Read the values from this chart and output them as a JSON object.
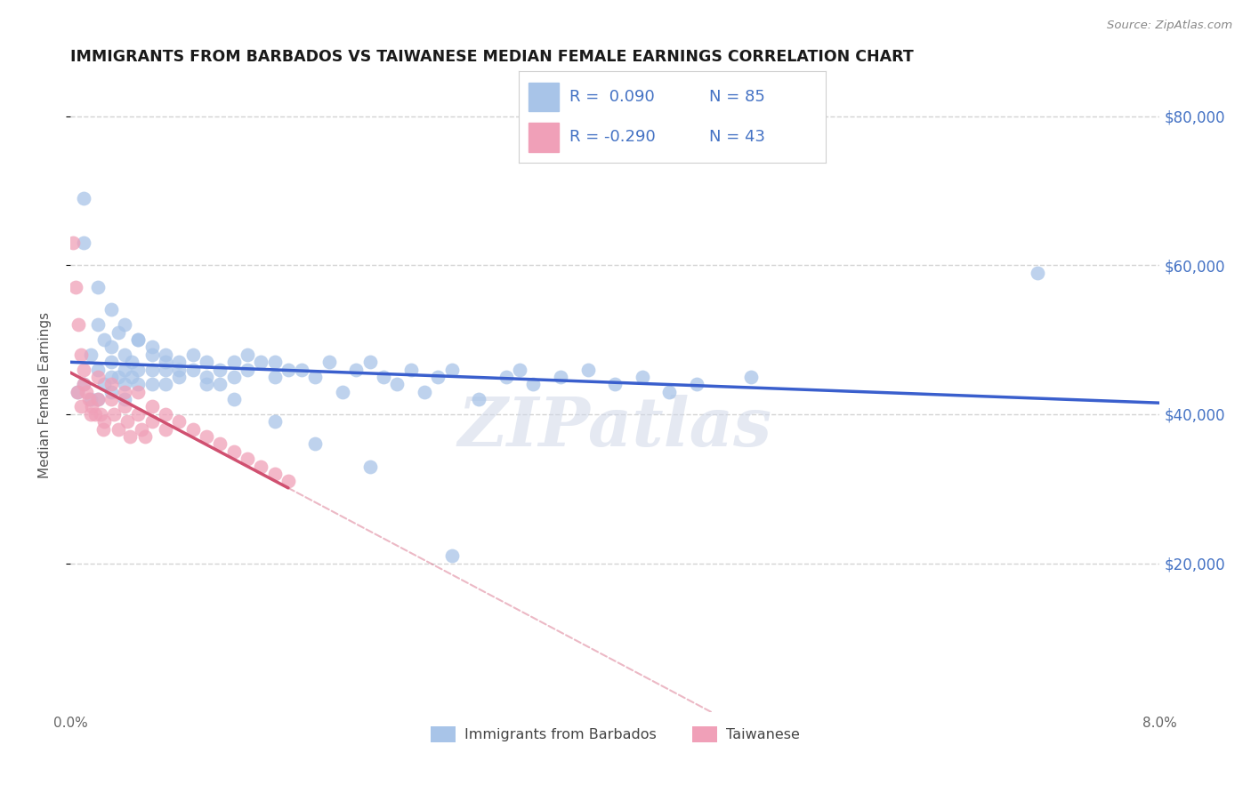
{
  "title": "IMMIGRANTS FROM BARBADOS VS TAIWANESE MEDIAN FEMALE EARNINGS CORRELATION CHART",
  "source": "Source: ZipAtlas.com",
  "ylabel": "Median Female Earnings",
  "xmin": 0.0,
  "xmax": 0.08,
  "ymin": 0,
  "ymax": 85000,
  "yticks": [
    20000,
    40000,
    60000,
    80000
  ],
  "ytick_labels": [
    "$20,000",
    "$40,000",
    "$60,000",
    "$80,000"
  ],
  "series1": {
    "label": "Immigrants from Barbados",
    "color_scatter": "#a8c4e8",
    "color_line": "#3a5fcd",
    "R": 0.09,
    "N": 85,
    "x": [
      0.0005,
      0.001,
      0.001,
      0.0015,
      0.0015,
      0.002,
      0.002,
      0.002,
      0.0025,
      0.0025,
      0.003,
      0.003,
      0.003,
      0.003,
      0.0035,
      0.0035,
      0.004,
      0.004,
      0.004,
      0.004,
      0.0045,
      0.0045,
      0.005,
      0.005,
      0.005,
      0.006,
      0.006,
      0.006,
      0.007,
      0.007,
      0.007,
      0.008,
      0.008,
      0.009,
      0.009,
      0.01,
      0.01,
      0.011,
      0.011,
      0.012,
      0.012,
      0.013,
      0.013,
      0.014,
      0.015,
      0.015,
      0.016,
      0.017,
      0.018,
      0.019,
      0.02,
      0.021,
      0.022,
      0.023,
      0.024,
      0.025,
      0.026,
      0.027,
      0.028,
      0.03,
      0.032,
      0.033,
      0.034,
      0.036,
      0.038,
      0.04,
      0.042,
      0.044,
      0.046,
      0.05,
      0.001,
      0.002,
      0.003,
      0.004,
      0.005,
      0.006,
      0.007,
      0.008,
      0.01,
      0.012,
      0.015,
      0.018,
      0.022,
      0.028,
      0.071
    ],
    "y": [
      43000,
      69000,
      44000,
      48000,
      42000,
      52000,
      46000,
      42000,
      50000,
      44000,
      49000,
      47000,
      45000,
      43000,
      51000,
      45000,
      48000,
      46000,
      44000,
      42000,
      47000,
      45000,
      50000,
      46000,
      44000,
      49000,
      46000,
      44000,
      48000,
      46000,
      44000,
      47000,
      45000,
      48000,
      46000,
      47000,
      45000,
      46000,
      44000,
      47000,
      45000,
      48000,
      46000,
      47000,
      47000,
      45000,
      46000,
      46000,
      45000,
      47000,
      43000,
      46000,
      47000,
      45000,
      44000,
      46000,
      43000,
      45000,
      46000,
      42000,
      45000,
      46000,
      44000,
      45000,
      46000,
      44000,
      45000,
      43000,
      44000,
      45000,
      63000,
      57000,
      54000,
      52000,
      50000,
      48000,
      47000,
      46000,
      44000,
      42000,
      39000,
      36000,
      33000,
      21000,
      59000
    ]
  },
  "series2": {
    "label": "Taiwanese",
    "color_scatter": "#f0a0b8",
    "color_line": "#d05070",
    "R": -0.29,
    "N": 43,
    "x": [
      0.0002,
      0.0004,
      0.0006,
      0.0008,
      0.001,
      0.001,
      0.0012,
      0.0014,
      0.0016,
      0.0018,
      0.002,
      0.002,
      0.0022,
      0.0024,
      0.003,
      0.003,
      0.0032,
      0.004,
      0.004,
      0.0042,
      0.0044,
      0.005,
      0.005,
      0.0052,
      0.006,
      0.006,
      0.007,
      0.007,
      0.008,
      0.009,
      0.01,
      0.011,
      0.012,
      0.013,
      0.014,
      0.015,
      0.016,
      0.0005,
      0.0008,
      0.0015,
      0.0025,
      0.0035,
      0.0055
    ],
    "y": [
      63000,
      57000,
      52000,
      48000,
      46000,
      44000,
      43000,
      42000,
      41000,
      40000,
      45000,
      42000,
      40000,
      38000,
      44000,
      42000,
      40000,
      43000,
      41000,
      39000,
      37000,
      43000,
      40000,
      38000,
      41000,
      39000,
      40000,
      38000,
      39000,
      38000,
      37000,
      36000,
      35000,
      34000,
      33000,
      32000,
      31000,
      43000,
      41000,
      40000,
      39000,
      38000,
      37000
    ]
  },
  "watermark": "ZIPatlas",
  "background_color": "#ffffff",
  "grid_color": "#c8c8c8",
  "title_color": "#1a1a1a",
  "legend_box_color": "#f5f5f5"
}
